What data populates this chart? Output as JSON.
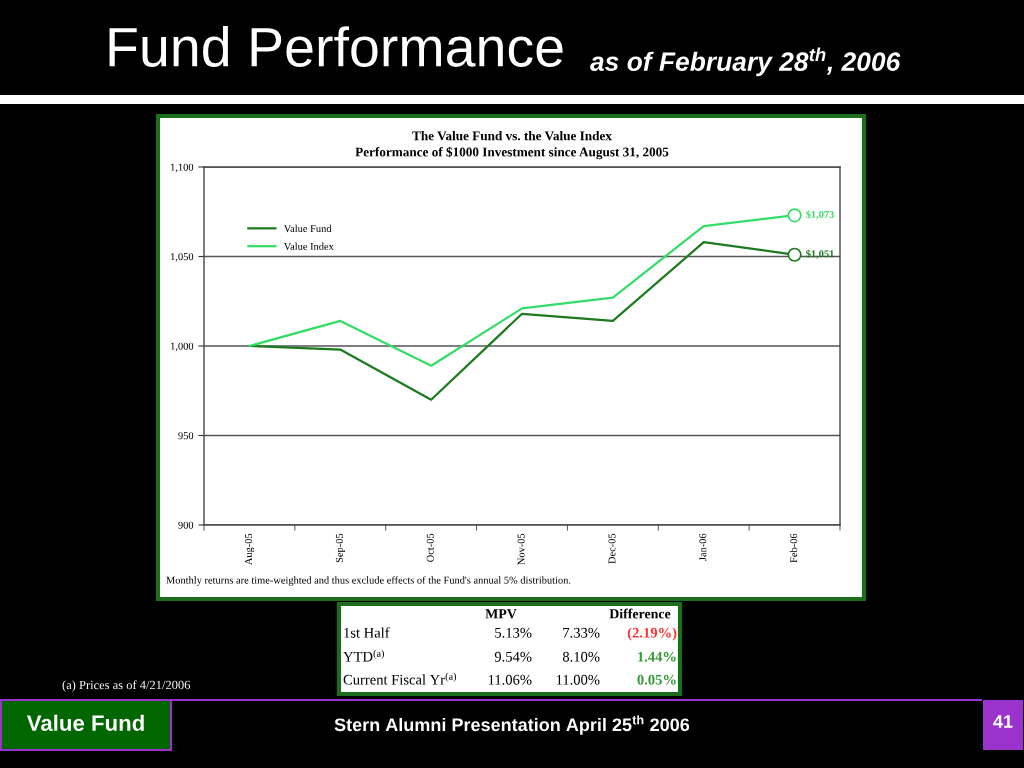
{
  "chart_data": [
    {
      "type": "line",
      "title": "The Value Fund vs. the Value Index",
      "subtitle": "Performance of $1000 Investment since August 31, 2005",
      "categories": [
        "Aug-05",
        "Sep-05",
        "Oct-05",
        "Nov-05",
        "Dec-05",
        "Jan-06",
        "Feb-06"
      ],
      "series": [
        {
          "name": "Value Fund",
          "color": "#1e7a1e",
          "values": [
            1000,
            998,
            970,
            1018,
            1014,
            1058,
            1051
          ]
        },
        {
          "name": "Value Index",
          "color": "#33dd66",
          "values": [
            1000,
            1014,
            989,
            1021,
            1027,
            1067,
            1073
          ]
        }
      ],
      "ylim": [
        900,
        1100
      ],
      "yticks": [
        {
          "value": 900,
          "label": "900"
        },
        {
          "value": 950,
          "label": "950"
        },
        {
          "value": 1000,
          "label": "1,000"
        },
        {
          "value": 1050,
          "label": "1,050"
        },
        {
          "value": 1100,
          "label": "1,100"
        }
      ],
      "grid": "y",
      "legend": "top left",
      "line_style": "solid",
      "annotations": [
        {
          "text": "$1,073",
          "x": "Feb-06",
          "y": 1073
        },
        {
          "text": "$1,051",
          "x": "Feb-06",
          "y": 1051
        },
        "Monthly returns are time-weighted and thus exclude effects of the Fund's annual 5% distribution.",
        "Fund Performance",
        "as of February 28$^{th}$, 2006",
        "(a) Prices as of 4/21/2006",
        "Value Fund",
        "Stern Alumni Presentation April 25$^{th}$ 2006",
        "41"
      ]
    },
    {
      "type": "other",
      "categories": [
        "MPV",
        null,
        "Difference"
      ],
      "y_categories": [
        "1st Half",
        "YTD$^{(a)}$",
        "Current Fiscal Yr$^{(a)}$"
      ],
      "cell_labels": [
        [
          "5.13%",
          "7.33%",
          "(2.19%)"
        ],
        [
          "9.54%",
          "8.10%",
          "1.44%"
        ],
        [
          "11.06%",
          "11.00%",
          "0.05%"
        ]
      ],
      "colors": [
        [
          "#000000",
          "#000000",
          "#ff3333"
        ],
        [
          "#000000",
          "#000000",
          "#339933"
        ],
        [
          "#000000",
          "#000000",
          "#339933"
        ]
      ]
    }
  ]
}
